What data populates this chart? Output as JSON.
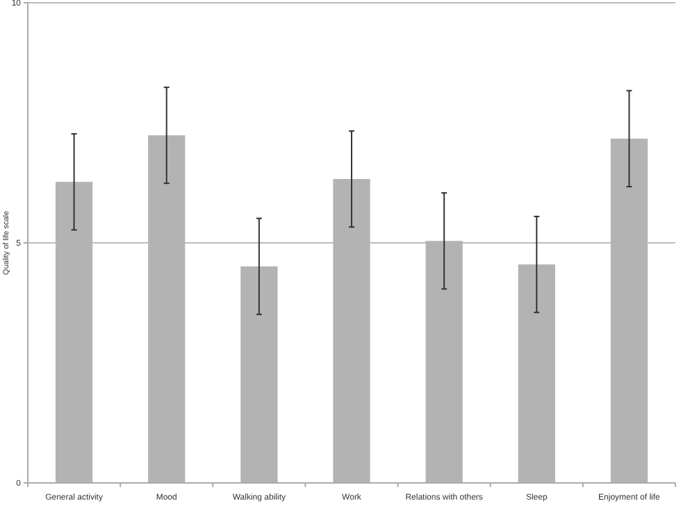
{
  "chart_data": {
    "type": "bar",
    "ylabel": "Quality of life scale",
    "categories": [
      "General activity",
      "Mood",
      "Walking ability",
      "Work",
      "Relations with others",
      "Sleep",
      "Enjoyment of life"
    ],
    "values": [
      6.27,
      7.24,
      4.51,
      6.33,
      5.04,
      4.55,
      7.17
    ],
    "errors": [
      1.0,
      1.0,
      1.0,
      1.0,
      1.0,
      1.0,
      1.0
    ],
    "color": "#b3b3b3",
    "ylim": [
      0,
      10
    ],
    "yticks": [
      0,
      5,
      10
    ],
    "grid": "y"
  }
}
